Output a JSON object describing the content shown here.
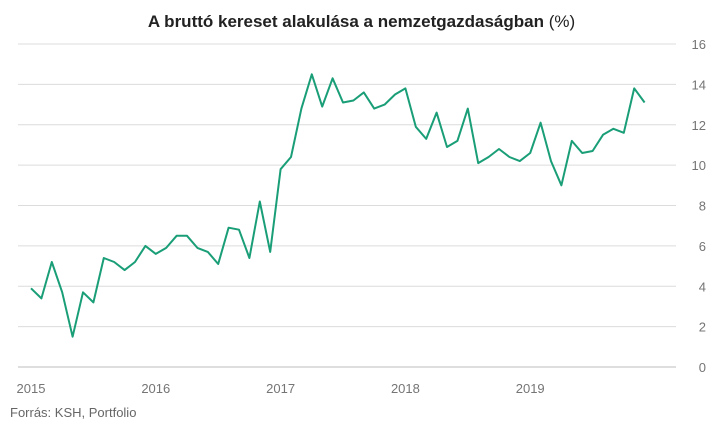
{
  "chart_data": {
    "type": "line",
    "title": "A bruttó kereset alakulása a nemzetgazdaságban",
    "title_unit": "(%)",
    "source": "Forrás: KSH, Portfolio",
    "ylim": [
      0,
      16
    ],
    "y_ticks": [
      0,
      2,
      4,
      6,
      8,
      10,
      12,
      14,
      16
    ],
    "y_axis_side": "right",
    "grid": true,
    "x_ticks": [
      {
        "label": "2015",
        "month_index": 0
      },
      {
        "label": "2016",
        "month_index": 12
      },
      {
        "label": "2017",
        "month_index": 24
      },
      {
        "label": "2018",
        "month_index": 36
      },
      {
        "label": "2019",
        "month_index": 48
      }
    ],
    "series": [
      {
        "color": "#1a9e77",
        "values": [
          3.9,
          3.4,
          5.2,
          3.7,
          1.5,
          3.7,
          3.2,
          5.4,
          5.2,
          4.8,
          5.2,
          6.0,
          5.6,
          5.9,
          6.5,
          6.5,
          5.9,
          5.7,
          5.1,
          6.9,
          6.8,
          5.4,
          8.2,
          5.7,
          9.8,
          10.4,
          12.8,
          14.5,
          12.9,
          14.3,
          13.1,
          13.2,
          13.6,
          12.8,
          13.0,
          13.5,
          13.8,
          11.9,
          11.3,
          12.6,
          10.9,
          11.2,
          12.8,
          10.1,
          10.4,
          10.8,
          10.4,
          10.2,
          10.6,
          12.1,
          10.2,
          9.0,
          11.2,
          10.6,
          10.7,
          11.5,
          11.8,
          11.6,
          13.8,
          13.1
        ]
      }
    ]
  }
}
